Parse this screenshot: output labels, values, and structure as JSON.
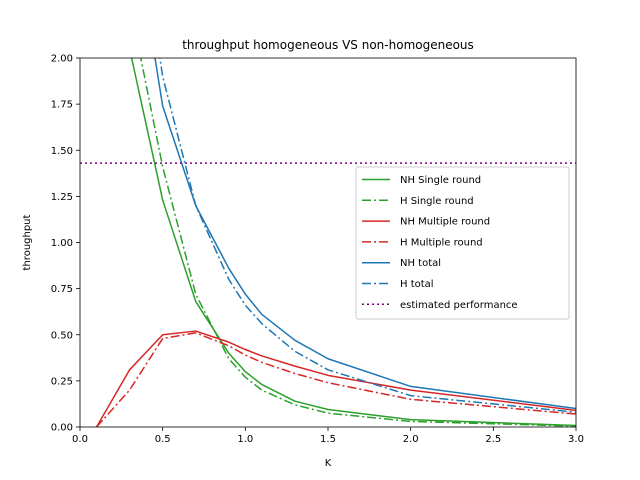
{
  "chart_data": {
    "type": "line",
    "title": "throughput homogeneous VS non-homogeneous",
    "xlabel": "K",
    "ylabel": "throughput",
    "xlim": [
      0.0,
      3.0
    ],
    "ylim": [
      0.0,
      2.0
    ],
    "xticks": [
      "0.0",
      "0.5",
      "1.0",
      "1.5",
      "2.0",
      "2.5",
      "3.0"
    ],
    "yticks": [
      "0.00",
      "0.25",
      "0.50",
      "0.75",
      "1.00",
      "1.25",
      "1.50",
      "1.75",
      "2.00"
    ],
    "grid": false,
    "legend_position": "center-right",
    "series": [
      {
        "name": "NH Single round",
        "color": "#2ca02c",
        "style": "solid",
        "x": [
          0.3,
          0.5,
          0.7,
          0.9,
          1.0,
          1.1,
          1.3,
          1.5,
          2.0,
          3.0
        ],
        "y": [
          2.05,
          1.23,
          0.68,
          0.4,
          0.3,
          0.23,
          0.14,
          0.095,
          0.04,
          0.008
        ]
      },
      {
        "name": "H  Single round",
        "color": "#2ca02c",
        "style": "dashdot",
        "x": [
          0.3,
          0.5,
          0.7,
          0.9,
          1.0,
          1.1,
          1.3,
          1.5,
          2.0,
          3.0
        ],
        "y": [
          2.3,
          1.41,
          0.72,
          0.37,
          0.27,
          0.2,
          0.12,
          0.075,
          0.03,
          0.005
        ]
      },
      {
        "name": "NH Multiple round",
        "color": "#d62728",
        "style": "solid",
        "x": [
          0.1,
          0.3,
          0.5,
          0.7,
          0.9,
          1.0,
          1.1,
          1.3,
          1.5,
          2.0,
          3.0
        ],
        "y": [
          0.0,
          0.31,
          0.5,
          0.52,
          0.46,
          0.42,
          0.385,
          0.33,
          0.28,
          0.2,
          0.09
        ]
      },
      {
        "name": "H  Multiple round",
        "color": "#d62728",
        "style": "dashdot",
        "x": [
          0.1,
          0.3,
          0.5,
          0.7,
          0.9,
          1.0,
          1.1,
          1.3,
          1.5,
          2.0,
          3.0
        ],
        "y": [
          0.0,
          0.2,
          0.48,
          0.51,
          0.44,
          0.39,
          0.35,
          0.29,
          0.24,
          0.15,
          0.07
        ]
      },
      {
        "name": "NH total",
        "color": "#1f77b4",
        "style": "solid",
        "x": [
          0.4,
          0.5,
          0.7,
          0.9,
          1.0,
          1.1,
          1.3,
          1.5,
          2.0,
          3.0
        ],
        "y": [
          2.3,
          1.74,
          1.2,
          0.86,
          0.72,
          0.61,
          0.47,
          0.37,
          0.22,
          0.1
        ]
      },
      {
        "name": "H  total",
        "color": "#1f77b4",
        "style": "dashdot",
        "x": [
          0.4,
          0.5,
          0.7,
          0.9,
          1.0,
          1.1,
          1.3,
          1.5,
          2.0,
          3.0
        ],
        "y": [
          2.5,
          1.9,
          1.2,
          0.8,
          0.66,
          0.56,
          0.41,
          0.31,
          0.17,
          0.08
        ]
      },
      {
        "name": "estimated performance",
        "color": "#800080",
        "style": "dotted",
        "x": [
          0.0,
          3.0
        ],
        "y": [
          1.43,
          1.43
        ]
      }
    ]
  }
}
